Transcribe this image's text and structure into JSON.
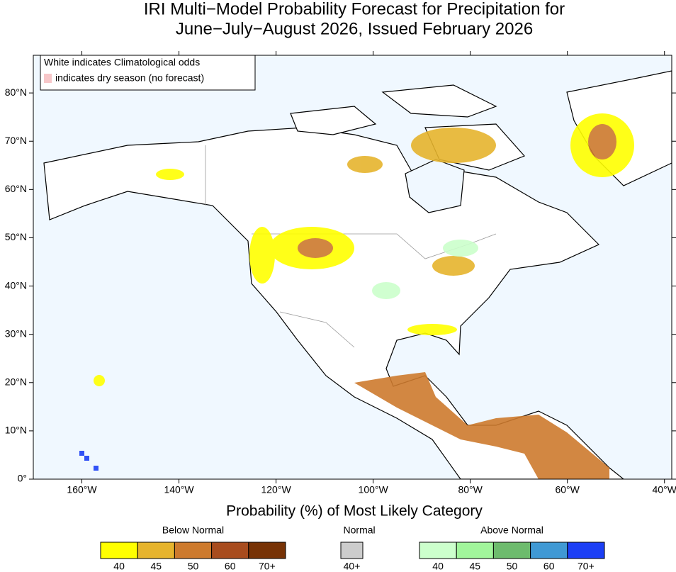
{
  "title": [
    "IRI Multi−Model Probability Forecast for Precipitation for",
    "June−July−August 2026, Issued February 2026"
  ],
  "map": {
    "xlim": [
      -170,
      -38.5
    ],
    "ylim": [
      0,
      87.8
    ],
    "lon_ticks": [
      {
        "value": -160,
        "label": "160°W"
      },
      {
        "value": -140,
        "label": "140°W"
      },
      {
        "value": -120,
        "label": "120°W"
      },
      {
        "value": -100,
        "label": "100°W"
      },
      {
        "value": -80,
        "label": "80°W"
      },
      {
        "value": -60,
        "label": "60°W"
      },
      {
        "value": -40,
        "label": "40°W"
      }
    ],
    "lat_ticks": [
      {
        "value": 0,
        "label": "0°"
      },
      {
        "value": 10,
        "label": "10°N"
      },
      {
        "value": 20,
        "label": "20°N"
      },
      {
        "value": 30,
        "label": "30°N"
      },
      {
        "value": 40,
        "label": "40°N"
      },
      {
        "value": 50,
        "label": "50°N"
      },
      {
        "value": 60,
        "label": "60°N"
      },
      {
        "value": 70,
        "label": "70°N"
      },
      {
        "value": 80,
        "label": "80°N"
      }
    ]
  },
  "note": {
    "line1": "White indicates Climatological odds",
    "line2": "indicates dry season (no forecast)",
    "swatch_color": "#f7c7c9"
  },
  "legend": {
    "title": "Probability (%) of Most Likely Category",
    "groups": [
      {
        "name": "Below Normal",
        "colors": [
          "#ffff00",
          "#e6b42d",
          "#cd7a2d",
          "#a84c1e",
          "#773205"
        ],
        "labels": [
          "40",
          "45",
          "50",
          "60",
          "70+"
        ]
      },
      {
        "name": "Normal",
        "colors": [
          "#cccccc"
        ],
        "labels": [
          "40+"
        ]
      },
      {
        "name": "Above Normal",
        "colors": [
          "#ccffcc",
          "#a1f59b",
          "#6dbb6d",
          "#4099d4",
          "#1c3ff5"
        ],
        "labels": [
          "40",
          "45",
          "50",
          "60",
          "70+"
        ]
      }
    ]
  }
}
